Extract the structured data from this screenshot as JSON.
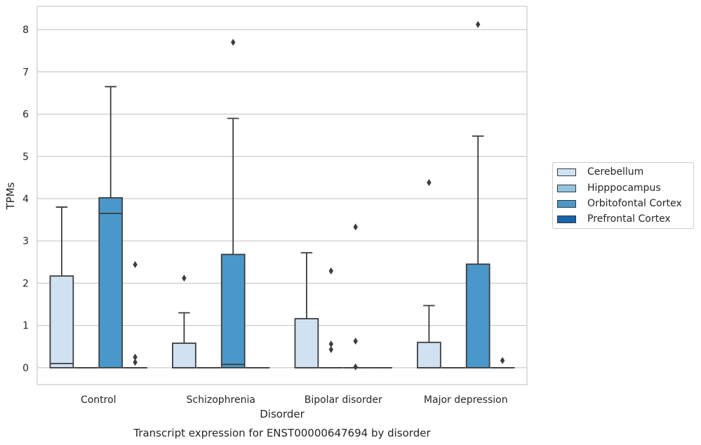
{
  "chart_data": {
    "type": "box",
    "title": "",
    "caption": "Transcript expression for ENST00000647694 by disorder",
    "xlabel": "Disorder",
    "ylabel": "TPMs",
    "ylim": [
      -0.4,
      8.55
    ],
    "yticks": [
      0,
      1,
      2,
      3,
      4,
      5,
      6,
      7,
      8
    ],
    "grid": "horizontal",
    "legend_position": "right",
    "categories": [
      "Control",
      "Schizophrenia",
      "Bipolar disorder",
      "Major depression"
    ],
    "series": [
      {
        "name": "Cerebellum",
        "color": "#d0e1f2",
        "boxes": [
          {
            "category": "Control",
            "whislo": 0,
            "q1": 0,
            "med": 0.1,
            "q3": 2.17,
            "whishi": 3.8,
            "fliers": []
          },
          {
            "category": "Schizophrenia",
            "whislo": 0,
            "q1": 0,
            "med": 0,
            "q3": 0.58,
            "whishi": 1.3,
            "fliers": [
              2.12
            ]
          },
          {
            "category": "Bipolar disorder",
            "whislo": 0,
            "q1": 0,
            "med": 0,
            "q3": 1.16,
            "whishi": 2.72,
            "fliers": []
          },
          {
            "category": "Major depression",
            "whislo": 0,
            "q1": 0,
            "med": 0,
            "q3": 0.6,
            "whishi": 1.47,
            "fliers": [
              4.38
            ]
          }
        ]
      },
      {
        "name": "Hipppocampus",
        "color": "#94c4df",
        "boxes": [
          {
            "category": "Control",
            "whislo": 0,
            "q1": 0,
            "med": 0,
            "q3": 0,
            "whishi": 0,
            "fliers": []
          },
          {
            "category": "Schizophrenia",
            "whislo": 0,
            "q1": 0,
            "med": 0,
            "q3": 0,
            "whishi": 0,
            "fliers": []
          },
          {
            "category": "Bipolar disorder",
            "whislo": 0,
            "q1": 0,
            "med": 0,
            "q3": 0,
            "whishi": 0,
            "fliers": [
              2.29,
              0.56,
              0.43
            ]
          },
          {
            "category": "Major depression",
            "whislo": 0,
            "q1": 0,
            "med": 0,
            "q3": 0,
            "whishi": 0,
            "fliers": []
          }
        ]
      },
      {
        "name": "Orbitofontal Cortex",
        "color": "#4a98c9",
        "boxes": [
          {
            "category": "Control",
            "whislo": 0,
            "q1": 0,
            "med": 3.65,
            "q3": 4.02,
            "whishi": 6.65,
            "fliers": []
          },
          {
            "category": "Schizophrenia",
            "whislo": 0,
            "q1": 0,
            "med": 0.08,
            "q3": 2.68,
            "whishi": 5.9,
            "fliers": [
              7.7
            ]
          },
          {
            "category": "Bipolar disorder",
            "whislo": 0,
            "q1": 0,
            "med": 0,
            "q3": 0,
            "whishi": 0,
            "fliers": [
              3.33,
              0.63,
              0.02
            ]
          },
          {
            "category": "Major depression",
            "whislo": 0,
            "q1": 0,
            "med": 0,
            "q3": 2.45,
            "whishi": 5.48,
            "fliers": [
              8.12
            ]
          }
        ]
      },
      {
        "name": "Prefrontal Cortex",
        "color": "#1764ab",
        "boxes": [
          {
            "category": "Control",
            "whislo": 0,
            "q1": 0,
            "med": 0,
            "q3": 0,
            "whishi": 0,
            "fliers": [
              2.44,
              0.25,
              0.13
            ]
          },
          {
            "category": "Schizophrenia",
            "whislo": 0,
            "q1": 0,
            "med": 0,
            "q3": 0,
            "whishi": 0,
            "fliers": []
          },
          {
            "category": "Bipolar disorder",
            "whislo": 0,
            "q1": 0,
            "med": 0,
            "q3": 0,
            "whishi": 0,
            "fliers": []
          },
          {
            "category": "Major depression",
            "whislo": 0,
            "q1": 0,
            "med": 0,
            "q3": 0,
            "whishi": 0,
            "fliers": [
              0.17
            ]
          }
        ]
      }
    ]
  }
}
